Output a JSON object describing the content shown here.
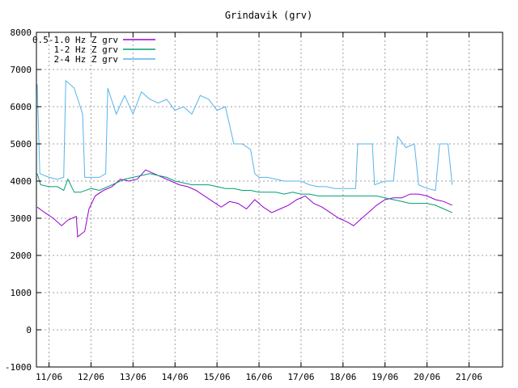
{
  "chart_data": {
    "type": "line",
    "title": "Grindavik (grv)",
    "xlabel": "",
    "ylabel": "",
    "ylim": [
      -1000,
      8000
    ],
    "y_ticks": [
      -1000,
      0,
      1000,
      2000,
      3000,
      4000,
      5000,
      6000,
      7000,
      8000
    ],
    "x_unit": "day",
    "xlim": [
      10.7,
      21.8
    ],
    "x_ticks": [
      {
        "value": 11,
        "label": "11/06"
      },
      {
        "value": 12,
        "label": "12/06"
      },
      {
        "value": 13,
        "label": "13/06"
      },
      {
        "value": 14,
        "label": "14/06"
      },
      {
        "value": 15,
        "label": "15/06"
      },
      {
        "value": 16,
        "label": "16/06"
      },
      {
        "value": 17,
        "label": "17/06"
      },
      {
        "value": 18,
        "label": "18/06"
      },
      {
        "value": 19,
        "label": "19/06"
      },
      {
        "value": 20,
        "label": "20/06"
      },
      {
        "value": 21,
        "label": "21/06"
      }
    ],
    "grid": true,
    "legend_position": "top-left",
    "series": [
      {
        "name": "0.5-1.0 Hz Z grv",
        "color": "#9400d3",
        "points": [
          [
            10.72,
            3300
          ],
          [
            10.9,
            3150
          ],
          [
            11.1,
            3000
          ],
          [
            11.3,
            2800
          ],
          [
            11.45,
            2950
          ],
          [
            11.65,
            3050
          ],
          [
            11.68,
            2500
          ],
          [
            11.85,
            2650
          ],
          [
            11.95,
            3250
          ],
          [
            12.1,
            3600
          ],
          [
            12.3,
            3750
          ],
          [
            12.5,
            3850
          ],
          [
            12.7,
            4050
          ],
          [
            12.9,
            4000
          ],
          [
            13.1,
            4050
          ],
          [
            13.3,
            4300
          ],
          [
            13.5,
            4200
          ],
          [
            13.7,
            4100
          ],
          [
            13.9,
            4000
          ],
          [
            14.1,
            3900
          ],
          [
            14.3,
            3850
          ],
          [
            14.5,
            3750
          ],
          [
            14.7,
            3600
          ],
          [
            14.9,
            3450
          ],
          [
            15.1,
            3300
          ],
          [
            15.3,
            3450
          ],
          [
            15.5,
            3400
          ],
          [
            15.7,
            3250
          ],
          [
            15.9,
            3500
          ],
          [
            16.1,
            3300
          ],
          [
            16.3,
            3150
          ],
          [
            16.5,
            3250
          ],
          [
            16.7,
            3350
          ],
          [
            16.9,
            3500
          ],
          [
            17.1,
            3600
          ],
          [
            17.3,
            3400
          ],
          [
            17.5,
            3300
          ],
          [
            17.7,
            3150
          ],
          [
            17.9,
            3000
          ],
          [
            18.1,
            2900
          ],
          [
            18.25,
            2800
          ],
          [
            18.4,
            2950
          ],
          [
            18.6,
            3150
          ],
          [
            18.8,
            3350
          ],
          [
            19.0,
            3500
          ],
          [
            19.2,
            3550
          ],
          [
            19.4,
            3550
          ],
          [
            19.6,
            3650
          ],
          [
            19.8,
            3650
          ],
          [
            20.0,
            3600
          ],
          [
            20.2,
            3500
          ],
          [
            20.4,
            3450
          ],
          [
            20.6,
            3350
          ]
        ]
      },
      {
        "name": "1-2 Hz Z grv",
        "color": "#009e73",
        "points": [
          [
            10.72,
            4200
          ],
          [
            10.8,
            3900
          ],
          [
            11.0,
            3850
          ],
          [
            11.2,
            3850
          ],
          [
            11.35,
            3750
          ],
          [
            11.45,
            4050
          ],
          [
            11.6,
            3700
          ],
          [
            11.75,
            3700
          ],
          [
            12.0,
            3800
          ],
          [
            12.2,
            3750
          ],
          [
            12.4,
            3850
          ],
          [
            12.6,
            3950
          ],
          [
            12.8,
            4050
          ],
          [
            13.0,
            4100
          ],
          [
            13.2,
            4150
          ],
          [
            13.4,
            4200
          ],
          [
            13.6,
            4150
          ],
          [
            13.8,
            4100
          ],
          [
            14.0,
            4000
          ],
          [
            14.2,
            3950
          ],
          [
            14.4,
            3900
          ],
          [
            14.6,
            3900
          ],
          [
            14.8,
            3900
          ],
          [
            15.0,
            3850
          ],
          [
            15.2,
            3800
          ],
          [
            15.4,
            3800
          ],
          [
            15.6,
            3750
          ],
          [
            15.8,
            3750
          ],
          [
            16.0,
            3700
          ],
          [
            16.2,
            3700
          ],
          [
            16.4,
            3700
          ],
          [
            16.6,
            3650
          ],
          [
            16.8,
            3700
          ],
          [
            17.0,
            3650
          ],
          [
            17.2,
            3650
          ],
          [
            17.4,
            3600
          ],
          [
            17.6,
            3600
          ],
          [
            17.8,
            3600
          ],
          [
            18.0,
            3600
          ],
          [
            18.2,
            3600
          ],
          [
            18.4,
            3600
          ],
          [
            18.6,
            3600
          ],
          [
            18.8,
            3600
          ],
          [
            19.0,
            3550
          ],
          [
            19.2,
            3500
          ],
          [
            19.4,
            3450
          ],
          [
            19.6,
            3400
          ],
          [
            19.8,
            3400
          ],
          [
            20.0,
            3400
          ],
          [
            20.2,
            3350
          ],
          [
            20.4,
            3250
          ],
          [
            20.6,
            3150
          ]
        ]
      },
      {
        "name": "2-4 Hz Z grv",
        "color": "#56b4e9",
        "points": [
          [
            10.72,
            6600
          ],
          [
            10.78,
            4200
          ],
          [
            11.0,
            4100
          ],
          [
            11.2,
            4050
          ],
          [
            11.35,
            4100
          ],
          [
            11.4,
            6700
          ],
          [
            11.6,
            6500
          ],
          [
            11.8,
            5800
          ],
          [
            11.85,
            4100
          ],
          [
            12.0,
            4100
          ],
          [
            12.2,
            4100
          ],
          [
            12.35,
            4200
          ],
          [
            12.4,
            6500
          ],
          [
            12.6,
            5800
          ],
          [
            12.8,
            6300
          ],
          [
            13.0,
            5800
          ],
          [
            13.2,
            6400
          ],
          [
            13.4,
            6200
          ],
          [
            13.6,
            6100
          ],
          [
            13.8,
            6200
          ],
          [
            14.0,
            5900
          ],
          [
            14.2,
            6000
          ],
          [
            14.4,
            5800
          ],
          [
            14.6,
            6300
          ],
          [
            14.8,
            6200
          ],
          [
            15.0,
            5900
          ],
          [
            15.2,
            6000
          ],
          [
            15.4,
            5000
          ],
          [
            15.6,
            5000
          ],
          [
            15.8,
            4850
          ],
          [
            15.9,
            4200
          ],
          [
            16.0,
            4100
          ],
          [
            16.2,
            4100
          ],
          [
            16.4,
            4050
          ],
          [
            16.6,
            4000
          ],
          [
            16.8,
            4000
          ],
          [
            17.0,
            4000
          ],
          [
            17.2,
            3900
          ],
          [
            17.4,
            3850
          ],
          [
            17.6,
            3850
          ],
          [
            17.8,
            3800
          ],
          [
            18.0,
            3800
          ],
          [
            18.2,
            3800
          ],
          [
            18.3,
            3800
          ],
          [
            18.35,
            5000
          ],
          [
            18.7,
            5000
          ],
          [
            18.75,
            3900
          ],
          [
            19.0,
            4000
          ],
          [
            19.2,
            4000
          ],
          [
            19.3,
            5200
          ],
          [
            19.5,
            4900
          ],
          [
            19.7,
            5000
          ],
          [
            19.8,
            3900
          ],
          [
            20.0,
            3800
          ],
          [
            20.2,
            3750
          ],
          [
            20.3,
            5000
          ],
          [
            20.5,
            5000
          ],
          [
            20.6,
            3900
          ]
        ]
      }
    ]
  }
}
